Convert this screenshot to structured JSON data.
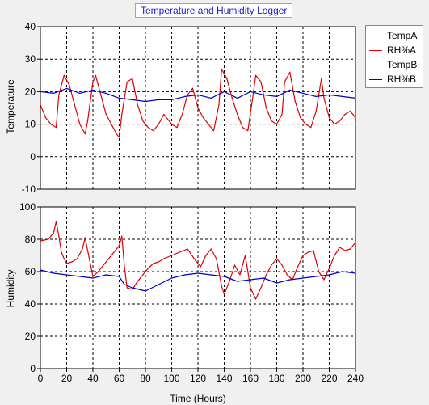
{
  "chart_data": [
    {
      "type": "line",
      "title": "Temperature and Humidity Logger",
      "ylabel": "Temperature",
      "xlabel": "",
      "xlim": [
        0,
        240
      ],
      "ylim": [
        -10,
        40
      ],
      "x_ticks": [
        0,
        20,
        40,
        60,
        80,
        100,
        120,
        140,
        160,
        180,
        200,
        220,
        240
      ],
      "y_ticks": [
        -10,
        0,
        10,
        20,
        30,
        40
      ],
      "grid": true,
      "series": [
        {
          "name": "TempA",
          "color": "#e00000",
          "x": [
            0,
            4,
            8,
            12,
            14,
            18,
            22,
            26,
            30,
            34,
            36,
            40,
            42,
            46,
            50,
            54,
            58,
            60,
            62,
            66,
            70,
            74,
            78,
            82,
            86,
            90,
            94,
            100,
            104,
            108,
            112,
            116,
            120,
            124,
            128,
            132,
            136,
            138,
            142,
            146,
            150,
            154,
            158,
            162,
            164,
            168,
            172,
            176,
            180,
            184,
            186,
            190,
            194,
            198,
            202,
            206,
            210,
            214,
            216,
            220,
            224,
            228,
            232,
            236,
            240
          ],
          "y": [
            16,
            12,
            10,
            9,
            19,
            25,
            22,
            16,
            10,
            7,
            11,
            23,
            25,
            19,
            13,
            10,
            7,
            6,
            13,
            23,
            24,
            16,
            11,
            9,
            8,
            10,
            13,
            10,
            9,
            13,
            19,
            21,
            15,
            12,
            10,
            8,
            16,
            27,
            24,
            18,
            13,
            9,
            8,
            19,
            25,
            23,
            15,
            11,
            10,
            13,
            23,
            26,
            17,
            12,
            10,
            9,
            14,
            24,
            18,
            12,
            10,
            11,
            13,
            14,
            12
          ]
        },
        {
          "name": "TempB",
          "color": "#0000c8",
          "x": [
            0,
            10,
            20,
            30,
            40,
            50,
            60,
            70,
            80,
            90,
            100,
            110,
            120,
            130,
            140,
            150,
            160,
            170,
            180,
            190,
            200,
            210,
            220,
            230,
            240
          ],
          "y": [
            20,
            19.5,
            21,
            19.5,
            20.5,
            19.5,
            18,
            17.5,
            17,
            17.5,
            17.5,
            18.5,
            19,
            18,
            20,
            18,
            20,
            19,
            18.5,
            20.5,
            19.5,
            18.5,
            19,
            18.5,
            18
          ]
        }
      ]
    },
    {
      "type": "line",
      "title": "",
      "ylabel": "Humidity",
      "xlabel": "Time (Hours)",
      "xlim": [
        0,
        240
      ],
      "ylim": [
        0,
        100
      ],
      "x_ticks": [
        0,
        20,
        40,
        60,
        80,
        100,
        120,
        140,
        160,
        180,
        200,
        220,
        240
      ],
      "y_ticks": [
        0,
        20,
        40,
        60,
        80,
        100
      ],
      "grid": true,
      "series": [
        {
          "name": "RH%A",
          "color": "#e00000",
          "x": [
            0,
            6,
            10,
            12,
            14,
            16,
            18,
            20,
            24,
            28,
            32,
            34,
            36,
            40,
            44,
            48,
            52,
            56,
            60,
            62,
            64,
            66,
            70,
            74,
            78,
            82,
            86,
            90,
            94,
            100,
            106,
            112,
            118,
            122,
            126,
            130,
            134,
            138,
            140,
            144,
            148,
            152,
            156,
            160,
            164,
            168,
            172,
            176,
            180,
            184,
            188,
            192,
            196,
            200,
            204,
            208,
            212,
            216,
            220,
            224,
            228,
            232,
            236,
            240
          ],
          "y": [
            79,
            80,
            84,
            91,
            82,
            72,
            68,
            65,
            66,
            68,
            74,
            81,
            73,
            57,
            60,
            64,
            68,
            72,
            76,
            82,
            63,
            50,
            49,
            54,
            58,
            62,
            65,
            66,
            68,
            70,
            72,
            74,
            67,
            63,
            70,
            74,
            68,
            51,
            46,
            54,
            64,
            58,
            70,
            50,
            43,
            50,
            58,
            64,
            68,
            64,
            58,
            55,
            63,
            70,
            72,
            73,
            60,
            55,
            62,
            70,
            75,
            73,
            74,
            78
          ]
        },
        {
          "name": "RH%B",
          "color": "#0000c8",
          "x": [
            0,
            10,
            20,
            30,
            40,
            50,
            60,
            64,
            70,
            80,
            90,
            100,
            110,
            120,
            130,
            140,
            150,
            160,
            170,
            180,
            190,
            200,
            210,
            220,
            230,
            240
          ],
          "y": [
            61,
            59,
            58,
            57,
            56,
            58,
            57,
            52,
            50,
            48,
            52,
            56,
            58,
            59,
            58,
            57,
            54,
            55,
            56,
            53,
            55,
            56,
            57,
            58,
            60,
            59
          ]
        }
      ]
    }
  ],
  "legend": {
    "items": [
      {
        "label": "TempA",
        "color": "#e00000"
      },
      {
        "label": "RH%A",
        "color": "#e00000"
      },
      {
        "label": "TempB",
        "color": "#0000c8"
      },
      {
        "label": "RH%B",
        "color": "#0000c8"
      }
    ]
  }
}
